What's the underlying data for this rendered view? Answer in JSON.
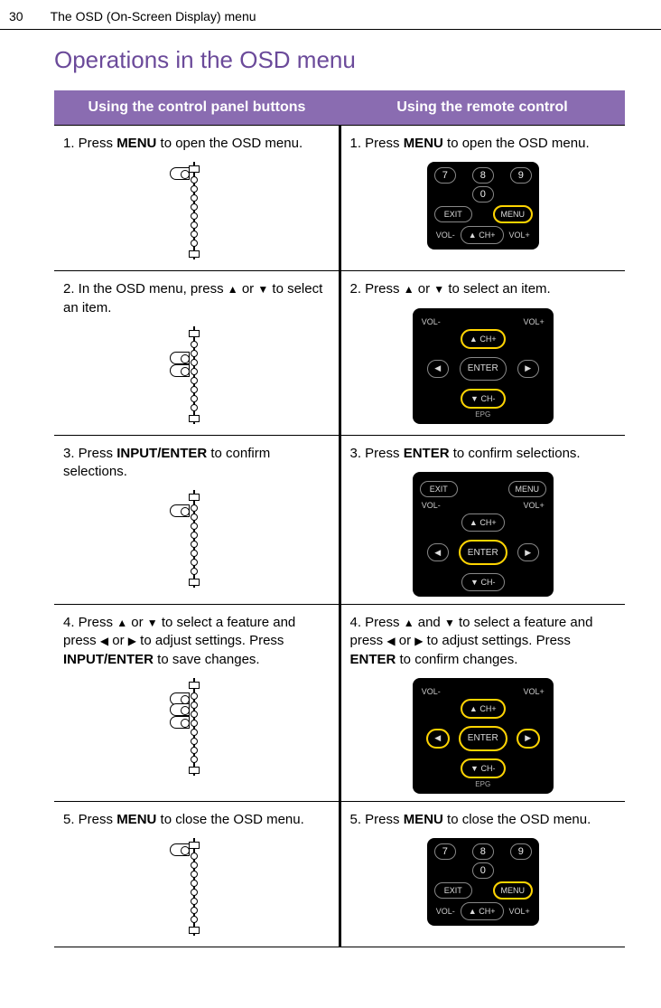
{
  "header": {
    "page_number": "30",
    "breadcrumb": "The OSD (On-Screen Display) menu"
  },
  "title": {
    "text": "Operations in the OSD menu",
    "color": "#6b4a9a"
  },
  "table": {
    "header_bg": "#8a6cb1",
    "col_left": "Using the control panel buttons",
    "col_right": "Using the remote control"
  },
  "remote_labels": {
    "exit": "EXIT",
    "menu": "MENU",
    "volminus": "VOL-",
    "volplus": "VOL+",
    "chplus": "▲  CH+",
    "chminus": "▼  CH-",
    "enter": "ENTER",
    "epg": "EPG",
    "n7": "7",
    "n8": "8",
    "n9": "9",
    "n0": "0"
  },
  "rows": [
    {
      "left_parts": [
        "1. Press ",
        "MENU",
        " to open the OSD menu."
      ],
      "right_parts": [
        "1. Press ",
        "MENU",
        " to open the OSD menu."
      ],
      "panel_fingers": [
        6
      ],
      "remote": {
        "show_nums": true,
        "show_pills": true,
        "show_vol": true,
        "show_dpad_up": true,
        "highlight": [
          "menu"
        ]
      }
    },
    {
      "left_parts": [
        "2. In the OSD menu, press ",
        "▲",
        " or ",
        "▼",
        " to select an item."
      ],
      "right_parts": [
        "2. Press ",
        "▲",
        " or ",
        "▼",
        " to select an item."
      ],
      "panel_fingers": [
        28,
        42
      ],
      "remote": {
        "show_vol": true,
        "show_dpad_full": true,
        "show_epg": true,
        "highlight": [
          "up",
          "down"
        ]
      }
    },
    {
      "left_parts": [
        "3. Press ",
        "INPUT/ENTER",
        " to confirm selections."
      ],
      "right_parts": [
        "3. Press ",
        "ENTER",
        " to confirm selections."
      ],
      "panel_fingers": [
        16
      ],
      "remote": {
        "show_pills": true,
        "show_vol": true,
        "show_dpad_full": true,
        "highlight": [
          "center"
        ]
      }
    },
    {
      "left_parts": [
        "4. Press ",
        "▲",
        " or ",
        "▼",
        " to select a feature and press ",
        "◀",
        " or ",
        "▶",
        " to adjust settings. Press ",
        "INPUT/ENTER",
        " to save changes."
      ],
      "right_parts": [
        "4. Press ",
        "▲",
        " and ",
        "▼",
        " to select a feature and press ",
        "◀",
        " or ",
        "▶",
        " to adjust settings. Press ",
        "ENTER",
        " to confirm changes."
      ],
      "panel_fingers": [
        16,
        28,
        42
      ],
      "remote": {
        "show_vol": true,
        "show_dpad_full": true,
        "show_epg": true,
        "highlight": [
          "up",
          "down",
          "left",
          "right",
          "center"
        ]
      }
    },
    {
      "left_parts": [
        "5. Press ",
        "MENU",
        " to close the OSD menu."
      ],
      "right_parts": [
        "5. Press ",
        "MENU",
        " to close the OSD menu."
      ],
      "panel_fingers": [
        6
      ],
      "remote": {
        "show_nums": true,
        "show_pills": true,
        "show_vol": true,
        "show_dpad_up": true,
        "highlight": [
          "menu"
        ]
      }
    }
  ]
}
